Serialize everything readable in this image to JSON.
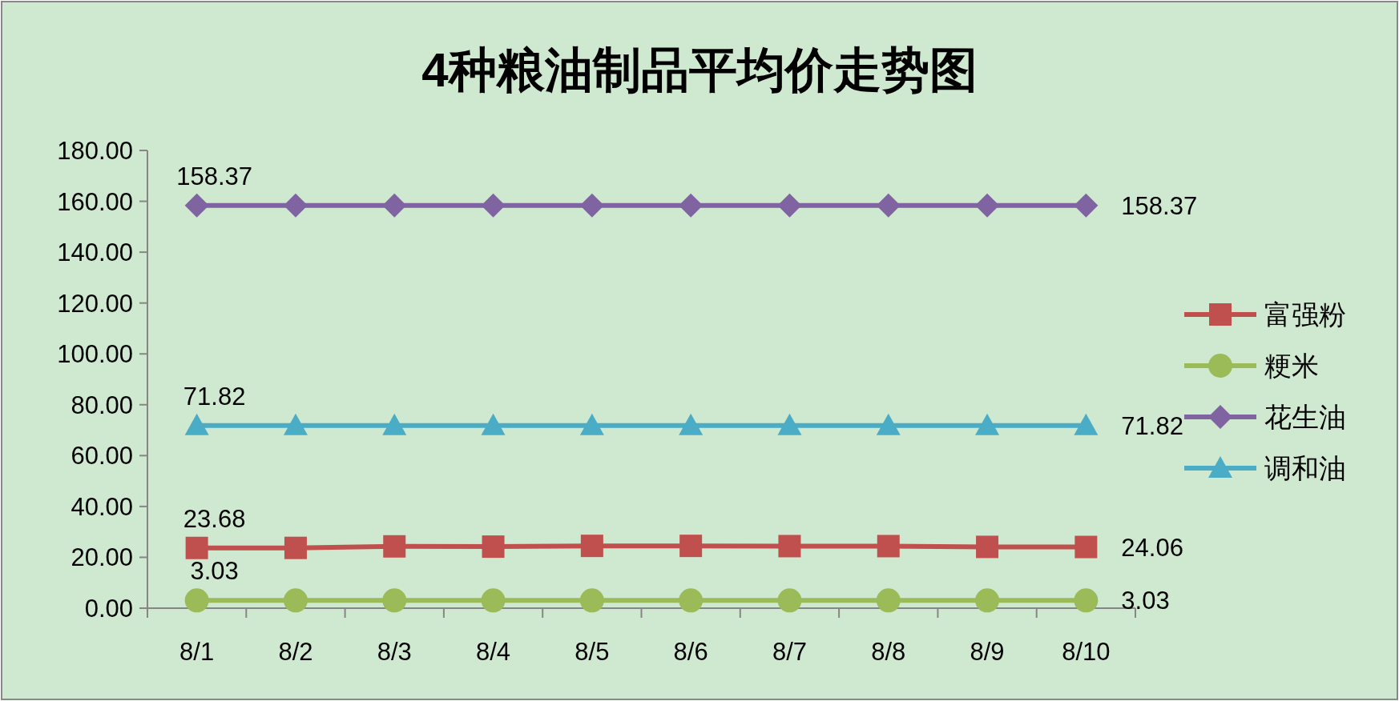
{
  "chart_data": {
    "type": "line",
    "title": "4种粮油制品平均价走势图",
    "categories": [
      "8/1",
      "8/2",
      "8/3",
      "8/4",
      "8/5",
      "8/6",
      "8/7",
      "8/8",
      "8/9",
      "8/10"
    ],
    "series": [
      {
        "name": "富强粉",
        "color": "#c0504d",
        "marker": "square",
        "values": [
          23.68,
          23.7,
          24.3,
          24.2,
          24.5,
          24.5,
          24.4,
          24.4,
          24.1,
          24.06
        ],
        "value_labels": [
          "23.68",
          null,
          null,
          null,
          null,
          null,
          null,
          null,
          null,
          "24.06"
        ]
      },
      {
        "name": "粳米",
        "color": "#9bbb59",
        "marker": "circle",
        "values": [
          3.03,
          3.03,
          3.03,
          3.03,
          3.03,
          3.03,
          3.03,
          3.03,
          3.03,
          3.03
        ],
        "value_labels": [
          "3.03",
          null,
          null,
          null,
          null,
          null,
          null,
          null,
          null,
          "3.03"
        ]
      },
      {
        "name": "花生油",
        "color": "#8064a2",
        "marker": "diamond",
        "values": [
          158.37,
          158.37,
          158.37,
          158.37,
          158.37,
          158.37,
          158.37,
          158.37,
          158.37,
          158.37
        ],
        "value_labels": [
          "158.37",
          null,
          null,
          null,
          null,
          null,
          null,
          null,
          null,
          "158.37"
        ]
      },
      {
        "name": "调和油",
        "color": "#4bacc6",
        "marker": "triangle",
        "values": [
          71.82,
          71.82,
          71.82,
          71.82,
          71.82,
          71.82,
          71.82,
          71.82,
          71.82,
          71.82
        ],
        "value_labels": [
          "71.82",
          null,
          null,
          null,
          null,
          null,
          null,
          null,
          null,
          "71.82"
        ]
      }
    ],
    "ylim": [
      0,
      180
    ],
    "yticks": [
      {
        "value": 0,
        "label": "0.00"
      },
      {
        "value": 20,
        "label": "20.00"
      },
      {
        "value": 40,
        "label": "40.00"
      },
      {
        "value": 60,
        "label": "60.00"
      },
      {
        "value": 80,
        "label": "80.00"
      },
      {
        "value": 100,
        "label": "100.00"
      },
      {
        "value": 120,
        "label": "120.00"
      },
      {
        "value": 140,
        "label": "140.00"
      },
      {
        "value": 160,
        "label": "160.00"
      },
      {
        "value": 180,
        "label": "180.00"
      }
    ],
    "grid": false,
    "legend": "right"
  }
}
